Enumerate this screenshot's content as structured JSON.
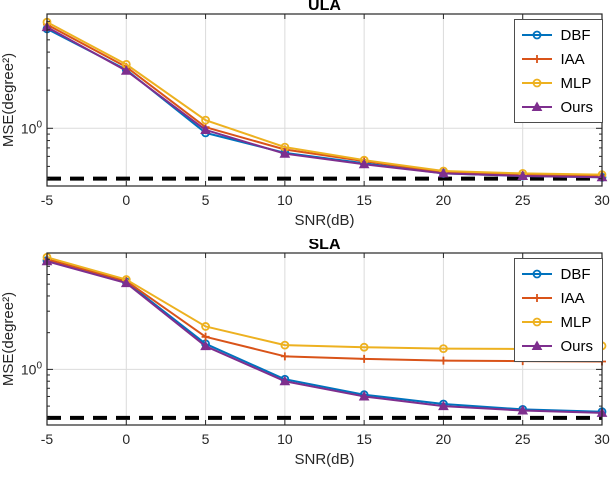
{
  "figure": {
    "background": "#ffffff",
    "axis_color": "#262626",
    "grid_color": "#dbdbdb",
    "legend_border_color": "#4d4d4d"
  },
  "chart_data": [
    {
      "type": "line",
      "title": "ULA",
      "xlabel": "SNR(dB)",
      "ylabel": "MSE(degree²)",
      "yscale": "log",
      "grid": true,
      "legend_position": "top-right",
      "x": [
        -5,
        0,
        5,
        10,
        15,
        20,
        25,
        30
      ],
      "xticks": [
        -5,
        0,
        5,
        10,
        15,
        20,
        25,
        30
      ],
      "ylim": [
        0.35,
        8
      ],
      "y_tick": {
        "value": 1,
        "base": "10",
        "exponent": "0"
      },
      "series": [
        {
          "name": "DBF",
          "color": "#0072BD",
          "marker": "circle",
          "values": [
            6.1,
            2.9,
            0.92,
            0.64,
            0.53,
            0.44,
            0.42,
            0.41
          ]
        },
        {
          "name": "IAA",
          "color": "#D95319",
          "marker": "plus",
          "values": [
            6.6,
            3.05,
            1.02,
            0.68,
            0.55,
            0.45,
            0.43,
            0.42
          ]
        },
        {
          "name": "MLP",
          "color": "#EDB120",
          "marker": "circle",
          "values": [
            6.9,
            3.2,
            1.16,
            0.71,
            0.56,
            0.46,
            0.44,
            0.43
          ]
        },
        {
          "name": "Ours",
          "color": "#7E2F8E",
          "marker": "triangle",
          "values": [
            6.3,
            2.85,
            0.97,
            0.63,
            0.52,
            0.44,
            0.42,
            0.41
          ]
        }
      ],
      "reference_line": {
        "style": "dashed",
        "color": "#000000",
        "value": 0.4,
        "width": 4
      }
    },
    {
      "type": "line",
      "title": "SLA",
      "xlabel": "SNR(dB)",
      "ylabel": "MSE(degree²)",
      "yscale": "log",
      "grid": true,
      "legend_position": "top-right",
      "x": [
        -5,
        0,
        5,
        10,
        15,
        20,
        25,
        30
      ],
      "xticks": [
        -5,
        0,
        5,
        10,
        15,
        20,
        25,
        30
      ],
      "ylim": [
        0.35,
        9
      ],
      "y_tick": {
        "value": 1,
        "base": "10",
        "exponent": "0"
      },
      "series": [
        {
          "name": "DBF",
          "color": "#0072BD",
          "marker": "circle",
          "values": [
            7.8,
            5.2,
            1.62,
            0.83,
            0.62,
            0.52,
            0.47,
            0.45
          ]
        },
        {
          "name": "IAA",
          "color": "#D95319",
          "marker": "plus",
          "values": [
            8.0,
            5.3,
            1.85,
            1.28,
            1.22,
            1.18,
            1.17,
            1.16
          ]
        },
        {
          "name": "MLP",
          "color": "#EDB120",
          "marker": "circle",
          "values": [
            8.3,
            5.45,
            2.25,
            1.58,
            1.52,
            1.48,
            1.47,
            1.56
          ]
        },
        {
          "name": "Ours",
          "color": "#7E2F8E",
          "marker": "triangle",
          "values": [
            7.7,
            5.1,
            1.55,
            0.8,
            0.6,
            0.5,
            0.46,
            0.44
          ]
        }
      ],
      "reference_line": {
        "style": "dashed",
        "color": "#000000",
        "value": 0.4,
        "width": 4
      }
    }
  ]
}
